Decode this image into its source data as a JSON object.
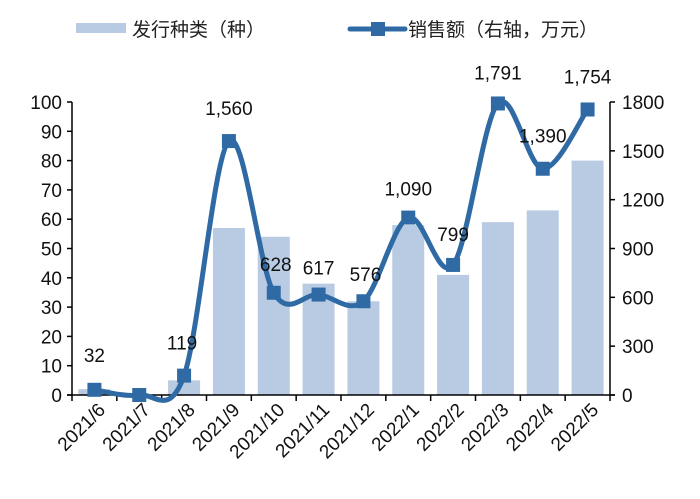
{
  "legend": {
    "bar_label": "发行种类（种）",
    "line_label": "销售额（右轴，万元）"
  },
  "colors": {
    "bar": "#b8cbe3",
    "line": "#2f6aa4",
    "axis": "#000000"
  },
  "chart_data": {
    "type": "bar+line",
    "categories": [
      "2021/6",
      "2021/7",
      "2021/8",
      "2021/9",
      "2021/10",
      "2021/11",
      "2021/12",
      "2022/1",
      "2022/2",
      "2022/3",
      "2022/4",
      "2022/5"
    ],
    "series": [
      {
        "name": "发行种类（种）",
        "type": "bar",
        "axis": "left",
        "values": [
          2,
          0,
          5,
          57,
          54,
          38,
          32,
          58,
          41,
          59,
          63,
          80
        ]
      },
      {
        "name": "销售额（右轴，万元）",
        "type": "line",
        "axis": "right",
        "values": [
          32,
          0,
          119,
          1560,
          628,
          617,
          576,
          1090,
          799,
          1791,
          1390,
          1754
        ],
        "labels": [
          "32",
          "",
          "119",
          "1,560",
          "628",
          "617",
          "576",
          "1,090",
          "799",
          "1,791",
          "1,390",
          "1,754"
        ]
      }
    ],
    "title": "",
    "xlabel": "",
    "ylabel_left": "",
    "ylabel_right": "",
    "ylim_left": [
      0,
      100
    ],
    "ylim_right": [
      0,
      1800
    ],
    "yticks_left": [
      0,
      10,
      20,
      30,
      40,
      50,
      60,
      70,
      80,
      90,
      100
    ],
    "yticks_right": [
      0,
      300,
      600,
      900,
      1200,
      1500,
      1800
    ],
    "grid": false,
    "legend_position": "top"
  }
}
